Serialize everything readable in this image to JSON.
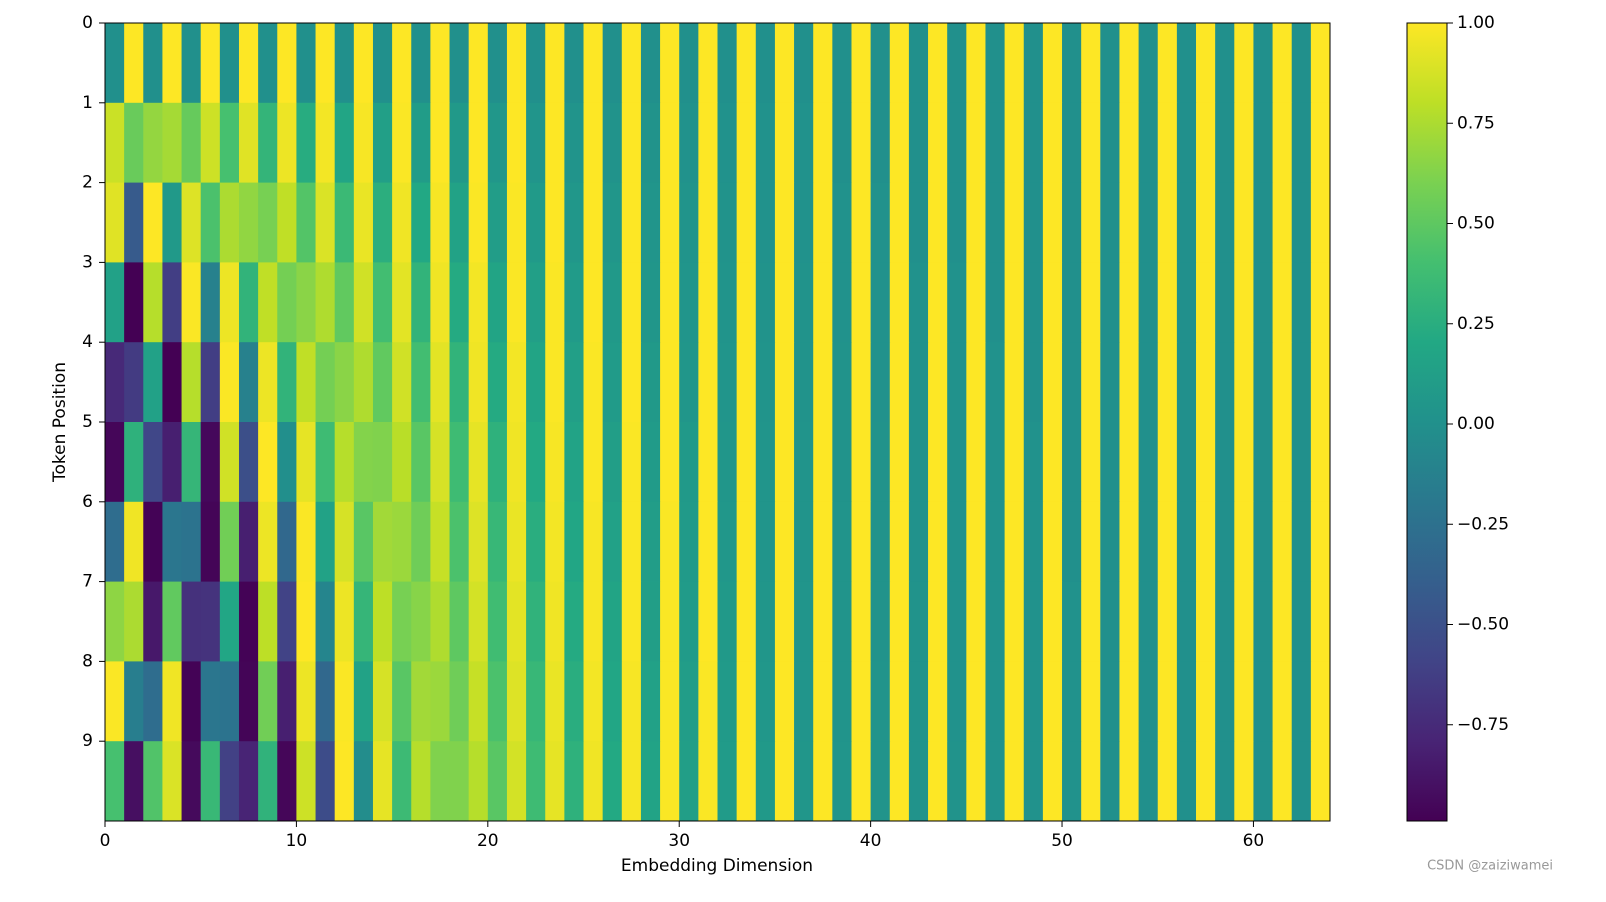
{
  "chart_data": {
    "type": "heatmap",
    "xlabel": "Embedding Dimension",
    "ylabel": "Token Position",
    "xlim": [
      0,
      64
    ],
    "xticks": [
      0,
      10,
      20,
      30,
      40,
      50,
      60
    ],
    "ylim": [
      10,
      0
    ],
    "yticks": [
      0,
      1,
      2,
      3,
      4,
      5,
      6,
      7,
      8,
      9
    ],
    "colormap": "viridis",
    "clim": [
      -0.99,
      1.0
    ],
    "cticks": [
      {
        "value": 1.0,
        "label": "1.00"
      },
      {
        "value": 0.75,
        "label": "0.75"
      },
      {
        "value": 0.5,
        "label": "0.50"
      },
      {
        "value": 0.25,
        "label": "0.25"
      },
      {
        "value": 0.0,
        "label": "0.00"
      },
      {
        "value": -0.25,
        "label": "−0.25"
      },
      {
        "value": -0.5,
        "label": "−0.50"
      },
      {
        "value": -0.75,
        "label": "−0.75"
      }
    ],
    "watermark": "CSDN @zaiziwamei",
    "z": [
      [
        0,
        1,
        0,
        1,
        0,
        1,
        0,
        1,
        0,
        1,
        0,
        1,
        0,
        1,
        0,
        1,
        0,
        1,
        0,
        1,
        0,
        1,
        0,
        1,
        0,
        1,
        0,
        1,
        0,
        1,
        0,
        1,
        0,
        1,
        0,
        1,
        0,
        1,
        0,
        1,
        0,
        1,
        0,
        1,
        0,
        1,
        0,
        1,
        0,
        1,
        0,
        1,
        0,
        1,
        0,
        1,
        0,
        1,
        0,
        1,
        0,
        1,
        0,
        1
      ],
      [
        0.84,
        0.54,
        0.68,
        0.73,
        0.53,
        0.85,
        0.41,
        0.91,
        0.31,
        0.95,
        0.24,
        0.97,
        0.18,
        0.98,
        0.13,
        0.99,
        0.1,
        1,
        0.07,
        1,
        0.06,
        1,
        0.04,
        1,
        0.03,
        1,
        0.02,
        1,
        0.02,
        1,
        0.01,
        1,
        0.01,
        1,
        0.01,
        1,
        0.01,
        1,
        0,
        1,
        0,
        1,
        0,
        1,
        0,
        1,
        0,
        1,
        0,
        1,
        0,
        1,
        0,
        1,
        0,
        1,
        0,
        1,
        0,
        1,
        0,
        1,
        0,
        1
      ],
      [
        0.91,
        -0.42,
        1,
        0.07,
        0.9,
        0.43,
        0.75,
        0.67,
        0.59,
        0.81,
        0.46,
        0.89,
        0.35,
        0.94,
        0.26,
        0.96,
        0.2,
        0.98,
        0.15,
        0.99,
        0.11,
        0.99,
        0.08,
        1,
        0.06,
        1,
        0.05,
        1,
        0.04,
        1,
        0.03,
        1,
        0.02,
        1,
        0.01,
        1,
        0.01,
        1,
        0.01,
        1,
        0.01,
        1,
        0,
        1,
        0,
        1,
        0,
        1,
        0,
        1,
        0,
        1,
        0,
        1,
        0,
        1,
        0,
        1,
        0,
        1,
        0,
        1,
        0,
        1
      ],
      [
        0.14,
        -0.99,
        0.78,
        -0.63,
        0.99,
        -0.12,
        0.95,
        0.3,
        0.81,
        0.58,
        0.65,
        0.76,
        0.51,
        0.86,
        0.39,
        0.92,
        0.3,
        0.96,
        0.22,
        0.97,
        0.17,
        0.99,
        0.13,
        0.99,
        0.09,
        1,
        0.07,
        1,
        0.05,
        1,
        0.04,
        1,
        0.03,
        1,
        0.02,
        1,
        0.02,
        1,
        0.01,
        1,
        0.01,
        1,
        0.01,
        1,
        0.01,
        1,
        0,
        1,
        0,
        1,
        0,
        1,
        0,
        1,
        0,
        1,
        0,
        1,
        0,
        1,
        0,
        1,
        0,
        1
      ],
      [
        -0.76,
        -0.65,
        0.14,
        -0.99,
        0.78,
        -0.63,
        0.99,
        -0.12,
        0.95,
        0.3,
        0.81,
        0.58,
        0.65,
        0.76,
        0.51,
        0.86,
        0.39,
        0.92,
        0.3,
        0.96,
        0.22,
        0.97,
        0.17,
        0.99,
        0.13,
        0.99,
        0.09,
        1,
        0.07,
        1,
        0.05,
        1,
        0.04,
        1,
        0.03,
        1,
        0.02,
        1,
        0.02,
        1,
        0.01,
        1,
        0.01,
        1,
        0.01,
        1,
        0.01,
        1,
        0,
        1,
        0,
        1,
        0,
        1,
        0,
        1,
        0,
        1,
        0,
        1,
        0,
        1,
        0,
        1
      ],
      [
        -0.96,
        0.28,
        -0.57,
        -0.82,
        0.32,
        -0.95,
        0.86,
        -0.51,
        1,
        -0.01,
        0.93,
        0.37,
        0.78,
        0.63,
        0.62,
        0.79,
        0.48,
        0.88,
        0.37,
        0.93,
        0.28,
        0.96,
        0.21,
        0.98,
        0.16,
        0.99,
        0.12,
        0.99,
        0.09,
        1,
        0.07,
        1,
        0.05,
        1,
        0.04,
        1,
        0.03,
        1,
        0.02,
        1,
        0.02,
        1,
        0.01,
        1,
        0.01,
        1,
        0.01,
        1,
        0.01,
        1,
        0,
        1,
        0,
        1,
        0,
        1,
        0,
        1,
        0,
        1,
        0,
        1,
        0,
        1
      ],
      [
        -0.28,
        0.96,
        -0.98,
        -0.21,
        -0.23,
        -0.97,
        0.57,
        -0.82,
        0.95,
        -0.32,
        0.99,
        0.15,
        0.88,
        0.48,
        0.72,
        0.7,
        0.56,
        0.83,
        0.43,
        0.9,
        0.33,
        0.94,
        0.25,
        0.97,
        0.19,
        0.98,
        0.14,
        0.99,
        0.11,
        0.99,
        0.08,
        1,
        0.06,
        1,
        0.04,
        1,
        0.03,
        1,
        0.03,
        1,
        0.02,
        1,
        0.01,
        1,
        0.01,
        1,
        0.01,
        1,
        0.01,
        1,
        0,
        1,
        0,
        1,
        0,
        1,
        0,
        1,
        0,
        1,
        0,
        1,
        0,
        1
      ],
      [
        0.66,
        0.75,
        -0.86,
        0.51,
        -0.71,
        -0.7,
        0.19,
        -0.98,
        0.8,
        -0.6,
        1,
        -0.09,
        0.95,
        0.32,
        0.8,
        0.59,
        0.64,
        0.76,
        0.5,
        0.87,
        0.38,
        0.92,
        0.29,
        0.96,
        0.22,
        0.98,
        0.17,
        0.99,
        0.12,
        0.99,
        0.09,
        1,
        0.07,
        1,
        0.05,
        1,
        0.04,
        1,
        0.03,
        1,
        0.02,
        1,
        0.02,
        1,
        0.01,
        1,
        0.01,
        1,
        0.01,
        1,
        0.01,
        1,
        0,
        1,
        0,
        1,
        0,
        1,
        0,
        1,
        0,
        1,
        0,
        1
      ],
      [
        0.99,
        -0.15,
        -0.28,
        0.96,
        -0.98,
        -0.21,
        -0.23,
        -0.97,
        0.57,
        -0.82,
        0.95,
        -0.32,
        0.99,
        0.15,
        0.88,
        0.48,
        0.72,
        0.7,
        0.56,
        0.83,
        0.43,
        0.9,
        0.33,
        0.94,
        0.25,
        0.97,
        0.19,
        0.98,
        0.14,
        0.99,
        0.11,
        0.99,
        0.08,
        1,
        0.06,
        1,
        0.04,
        1,
        0.03,
        1,
        0.03,
        1,
        0.02,
        1,
        0.01,
        1,
        0.01,
        1,
        0.01,
        1,
        0.01,
        1,
        0,
        1,
        0,
        1,
        0,
        1,
        0,
        1,
        0,
        1,
        0,
        1
      ],
      [
        0.41,
        -0.91,
        0.45,
        0.89,
        -0.94,
        0.34,
        -0.61,
        -0.79,
        0.29,
        -0.96,
        0.85,
        -0.53,
        1,
        -0.03,
        0.93,
        0.36,
        0.78,
        0.62,
        0.62,
        0.78,
        0.48,
        0.87,
        0.37,
        0.93,
        0.28,
        0.96,
        0.21,
        0.98,
        0.16,
        0.99,
        0.12,
        0.99,
        0.09,
        1,
        0.07,
        1,
        0.05,
        1,
        0.04,
        1,
        0.03,
        1,
        0.02,
        1,
        0.02,
        1,
        0.01,
        1,
        0.01,
        1,
        0.01,
        1,
        0,
        1,
        0,
        1,
        0,
        1,
        0,
        1,
        0,
        1,
        0,
        1
      ]
    ]
  }
}
